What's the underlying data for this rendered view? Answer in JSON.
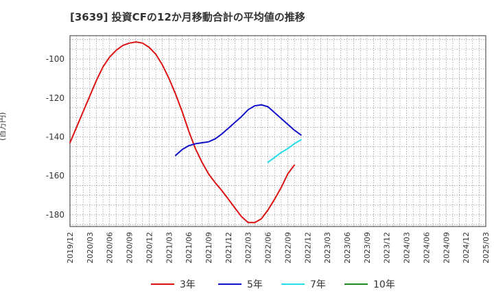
{
  "title": "[3639]  投資CFの12か月移動合計の平均値の推移",
  "chart_data": {
    "type": "line",
    "ylabel": "(百万円)",
    "xlabel": "",
    "ylim": [
      -186,
      -88
    ],
    "yticks": [
      -100,
      -120,
      -140,
      -160,
      -180
    ],
    "xticks": [
      "2019/12",
      "2020/03",
      "2020/06",
      "2020/09",
      "2020/12",
      "2021/03",
      "2021/06",
      "2021/09",
      "2021/12",
      "2022/03",
      "2022/06",
      "2022/09",
      "2022/12",
      "2023/03",
      "2023/06",
      "2023/09",
      "2023/12",
      "2024/03",
      "2024/06",
      "2024/09",
      "2024/12",
      "2025/03"
    ],
    "grid": true,
    "legend_position": "bottom",
    "series": [
      {
        "name": "3年",
        "color": "#dd1111",
        "values": [
          [
            0,
            -143
          ],
          [
            1,
            -135
          ],
          [
            2,
            -127
          ],
          [
            3,
            -119
          ],
          [
            4,
            -111
          ],
          [
            5,
            -104
          ],
          [
            6,
            -99
          ],
          [
            7,
            -95.5
          ],
          [
            8,
            -93
          ],
          [
            9,
            -91.8
          ],
          [
            10,
            -91.2
          ],
          [
            11,
            -91.8
          ],
          [
            12,
            -94
          ],
          [
            13,
            -97.5
          ],
          [
            14,
            -103
          ],
          [
            15,
            -110
          ],
          [
            16,
            -118
          ],
          [
            17,
            -127
          ],
          [
            18,
            -137
          ],
          [
            19,
            -146
          ],
          [
            20,
            -153
          ],
          [
            21,
            -159
          ],
          [
            22,
            -163.5
          ],
          [
            23,
            -167.5
          ],
          [
            24,
            -172
          ],
          [
            25,
            -176.5
          ],
          [
            26,
            -181
          ],
          [
            27,
            -184
          ],
          [
            28,
            -184
          ],
          [
            29,
            -182
          ],
          [
            30,
            -177.5
          ],
          [
            31,
            -172
          ],
          [
            32,
            -166
          ],
          [
            33,
            -159
          ],
          [
            34,
            -154.5
          ]
        ]
      },
      {
        "name": "5年",
        "color": "#1111cc",
        "values": [
          [
            16,
            -149.5
          ],
          [
            17,
            -146.5
          ],
          [
            18,
            -144.5
          ],
          [
            19,
            -143.5
          ],
          [
            20,
            -143
          ],
          [
            21,
            -142.5
          ],
          [
            22,
            -141
          ],
          [
            23,
            -138.5
          ],
          [
            24,
            -135.5
          ],
          [
            25,
            -132.5
          ],
          [
            26,
            -129.5
          ],
          [
            27,
            -126
          ],
          [
            28,
            -124
          ],
          [
            29,
            -123.5
          ],
          [
            30,
            -124.5
          ],
          [
            31,
            -127.5
          ],
          [
            32,
            -130.5
          ],
          [
            33,
            -133.5
          ],
          [
            34,
            -136.5
          ],
          [
            35,
            -139
          ]
        ]
      },
      {
        "name": "7年",
        "color": "#22ddee",
        "values": [
          [
            30,
            -153
          ],
          [
            31,
            -150.5
          ],
          [
            32,
            -148
          ],
          [
            33,
            -146
          ],
          [
            34,
            -143.5
          ],
          [
            35,
            -141.5
          ]
        ]
      },
      {
        "name": "10年",
        "color": "#228822",
        "values": []
      }
    ]
  }
}
